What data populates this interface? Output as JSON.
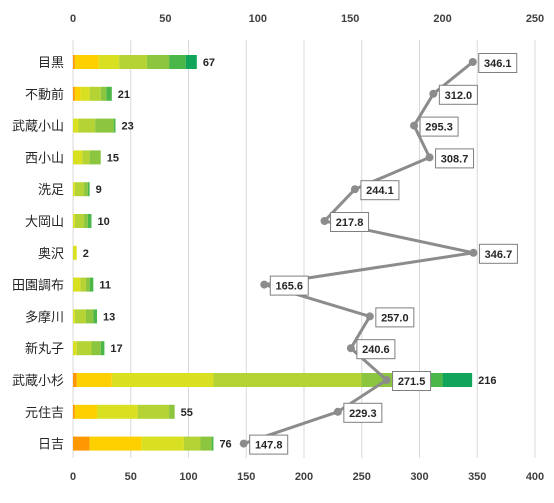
{
  "chart_data": {
    "type": "bar+line",
    "orientation": "horizontal",
    "title": "",
    "categories": [
      "目黒",
      "不動前",
      "武蔵小山",
      "西小山",
      "洗足",
      "大岡山",
      "奥沢",
      "田園調布",
      "多摩川",
      "新丸子",
      "武蔵小杉",
      "元住吉",
      "日吉"
    ],
    "bar_totals": [
      67,
      21,
      23,
      15,
      9,
      10,
      2,
      11,
      13,
      17,
      216,
      55,
      76
    ],
    "bar_segments": [
      [
        1,
        13,
        11,
        15,
        12,
        9,
        6
      ],
      [
        1,
        3,
        5,
        6,
        3,
        3
      ],
      [
        3,
        9,
        10,
        1
      ],
      [
        5,
        4,
        6
      ],
      [
        1,
        5,
        2,
        1
      ],
      [
        1,
        5,
        2,
        2
      ],
      [
        2
      ],
      [
        4,
        3,
        2,
        2
      ],
      [
        1,
        6,
        4,
        2
      ],
      [
        2,
        8,
        5,
        2
      ],
      [
        2,
        19,
        55,
        80,
        27,
        17,
        16
      ],
      [
        1,
        12,
        22,
        17,
        3
      ],
      [
        9,
        28,
        23,
        9,
        6,
        1
      ]
    ],
    "segment_colors": [
      "#ff9800",
      "#ffd000",
      "#d9e021",
      "#b5d334",
      "#8cc63f",
      "#4bb749",
      "#11a55b",
      "#13a899",
      "#0c6ab0"
    ],
    "line_values": [
      346.1,
      312.0,
      295.3,
      308.7,
      244.1,
      217.8,
      346.7,
      165.6,
      257.0,
      240.6,
      271.5,
      229.3,
      147.8
    ],
    "line_labels": [
      "346.1",
      "312.0",
      "295.3",
      "308.7",
      "244.1",
      "217.8",
      "346.7",
      "165.6",
      "257.0",
      "240.6",
      "271.5",
      "229.3",
      "147.8"
    ],
    "top_axis": {
      "ticks": [
        "0",
        "50",
        "100",
        "150",
        "200",
        "250"
      ],
      "range": [
        0,
        250
      ]
    },
    "bottom_axis": {
      "ticks": [
        "0",
        "50",
        "100",
        "150",
        "200",
        "250",
        "300",
        "350",
        "400"
      ],
      "range": [
        0,
        400
      ]
    },
    "grid": true,
    "colors": {
      "line": "#8c8c8c",
      "grid": "#d9d9d9",
      "label_border": "#7f7f7f"
    }
  }
}
